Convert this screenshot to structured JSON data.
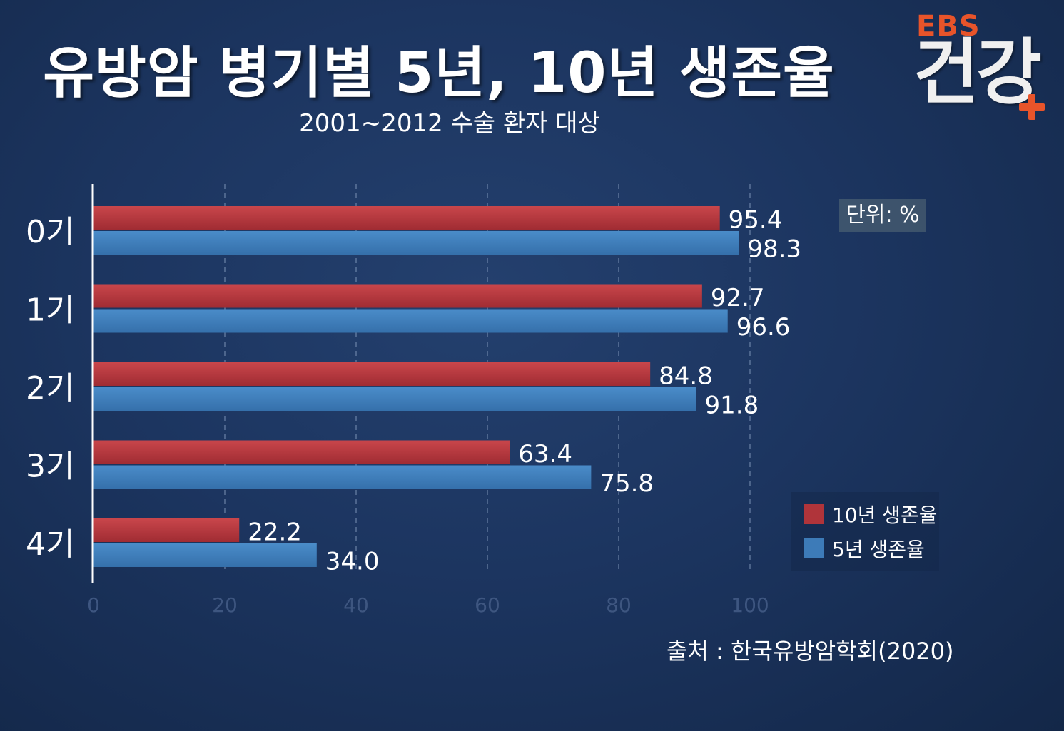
{
  "header": {
    "title": "유방암 병기별 5년, 10년 생존율",
    "subtitle": "2001~2012 수술 환자 대상"
  },
  "logo": {
    "brand": "EBS",
    "channel": "건강"
  },
  "unit_label": "단위: %",
  "source": "출처 : 한국유방암학회(2020)",
  "colors": {
    "ten_year": "#b0343a",
    "five_year": "#3d7bb8",
    "background": "#1c3560"
  },
  "chart_data": {
    "type": "bar",
    "orientation": "horizontal",
    "title": "유방암 병기별 5년, 10년 생존율",
    "subtitle": "2001~2012 수술 환자 대상",
    "categories": [
      "0기",
      "1기",
      "2기",
      "3기",
      "4기"
    ],
    "series": [
      {
        "name": "10년 생존율",
        "color": "#b0343a",
        "values": [
          95.4,
          92.7,
          84.8,
          63.4,
          22.2
        ],
        "labels": [
          "95.4",
          "92.7",
          "84.8",
          "63.4",
          "22.2"
        ]
      },
      {
        "name": "5년 생존율",
        "color": "#3d7bb8",
        "values": [
          98.3,
          96.6,
          91.8,
          75.8,
          34.0
        ],
        "labels": [
          "98.3",
          "96.6",
          "91.8",
          "75.8",
          "34.0"
        ]
      }
    ],
    "xlim": [
      0,
      100
    ],
    "xticks": [
      "0",
      "20",
      "40",
      "60",
      "80",
      "100"
    ],
    "grid": "vertical dashed",
    "legend_position": "bottom-right"
  }
}
